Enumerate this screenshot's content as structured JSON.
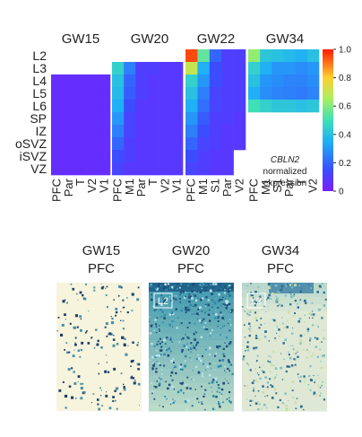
{
  "chart_data": {
    "type": "heatmap",
    "rows": [
      "L2",
      "L3",
      "L4",
      "L5",
      "L6",
      "SP",
      "IZ",
      "oSVZ",
      "iSVZ",
      "VZ"
    ],
    "panels": [
      {
        "title": "GW15",
        "columns": [
          "PFC",
          "Par",
          "T",
          "V2",
          "V1"
        ],
        "values": [
          [
            null,
            null,
            null,
            null,
            null
          ],
          [
            null,
            null,
            null,
            null,
            null
          ],
          [
            0.05,
            0.05,
            0.05,
            0.05,
            0.05
          ],
          [
            0.05,
            0.05,
            0.05,
            0.05,
            0.05
          ],
          [
            0.05,
            0.05,
            0.05,
            0.05,
            0.05
          ],
          [
            0.05,
            0.05,
            0.05,
            0.05,
            0.05
          ],
          [
            0.05,
            0.05,
            0.05,
            0.05,
            0.05
          ],
          [
            0.05,
            0.05,
            0.05,
            0.05,
            0.05
          ],
          [
            0.05,
            0.05,
            0.05,
            0.05,
            0.05
          ],
          [
            0.05,
            0.05,
            0.05,
            0.05,
            0.05
          ]
        ]
      },
      {
        "title": "GW20",
        "columns": [
          "PFC",
          "M1",
          "Par",
          "T",
          "V2",
          "V1"
        ],
        "values": [
          [
            null,
            null,
            null,
            null,
            null,
            null
          ],
          [
            0.45,
            0.25,
            0.1,
            0.1,
            0.08,
            0.08
          ],
          [
            0.4,
            0.2,
            0.1,
            0.08,
            0.08,
            0.08
          ],
          [
            0.38,
            0.18,
            0.1,
            0.08,
            0.08,
            0.08
          ],
          [
            0.35,
            0.15,
            0.08,
            0.08,
            0.08,
            0.08
          ],
          [
            0.3,
            0.12,
            0.08,
            0.08,
            0.08,
            0.08
          ],
          [
            0.25,
            0.12,
            0.08,
            0.08,
            0.08,
            0.08
          ],
          [
            0.2,
            0.1,
            0.08,
            0.08,
            0.08,
            0.08
          ],
          [
            0.15,
            0.1,
            0.08,
            0.08,
            0.08,
            0.08
          ],
          [
            0.12,
            0.08,
            0.08,
            0.08,
            0.08,
            0.08
          ]
        ]
      },
      {
        "title": "GW22",
        "columns": [
          "PFC",
          "M1",
          "S1",
          "Par",
          "V2"
        ],
        "values": [
          [
            0.95,
            0.55,
            0.2,
            0.1,
            0.1
          ],
          [
            0.7,
            0.35,
            0.15,
            0.1,
            0.1
          ],
          [
            0.45,
            0.3,
            0.15,
            0.1,
            0.1
          ],
          [
            0.4,
            0.25,
            0.12,
            0.1,
            0.1
          ],
          [
            0.35,
            0.22,
            0.12,
            0.1,
            0.1
          ],
          [
            0.3,
            0.18,
            0.1,
            0.1,
            0.08
          ],
          [
            0.25,
            0.15,
            0.1,
            0.08,
            0.08
          ],
          [
            0.2,
            0.12,
            0.1,
            0.08,
            0.08
          ],
          [
            0.15,
            0.1,
            0.08,
            0.08,
            null
          ],
          [
            0.12,
            0.1,
            0.08,
            0.08,
            null
          ]
        ]
      },
      {
        "title": "GW34",
        "columns": [
          "PFC",
          "M1",
          "S1",
          "Par",
          "T",
          "V2"
        ],
        "values": [
          [
            0.62,
            0.42,
            0.4,
            0.38,
            0.36,
            0.4
          ],
          [
            0.45,
            0.35,
            0.3,
            0.3,
            0.28,
            0.3
          ],
          [
            0.4,
            0.3,
            0.28,
            0.26,
            0.26,
            0.28
          ],
          [
            0.35,
            0.28,
            0.26,
            0.25,
            0.24,
            0.26
          ],
          [
            0.5,
            0.45,
            0.42,
            0.42,
            0.4,
            0.42
          ],
          [
            null,
            null,
            null,
            null,
            null,
            null
          ],
          [
            null,
            null,
            null,
            null,
            null,
            null
          ],
          [
            null,
            null,
            null,
            null,
            null,
            null
          ],
          [
            null,
            null,
            null,
            null,
            null,
            null
          ],
          [
            null,
            null,
            null,
            null,
            null,
            null
          ]
        ]
      }
    ],
    "colorbar": {
      "min": 0,
      "max": 1.0,
      "ticks": [
        "0",
        "0.2",
        "0.4",
        "0.6",
        "0.8",
        "1.0"
      ],
      "gene": "CBLN2",
      "label_line2": "normalized",
      "label_line3": "expression"
    }
  },
  "lower_panels": [
    {
      "age": "GW15",
      "region": "PFC",
      "tag": ""
    },
    {
      "age": "GW20",
      "region": "PFC",
      "tag": "L2"
    },
    {
      "age": "GW34",
      "region": "PFC",
      "tag": "L2"
    }
  ]
}
